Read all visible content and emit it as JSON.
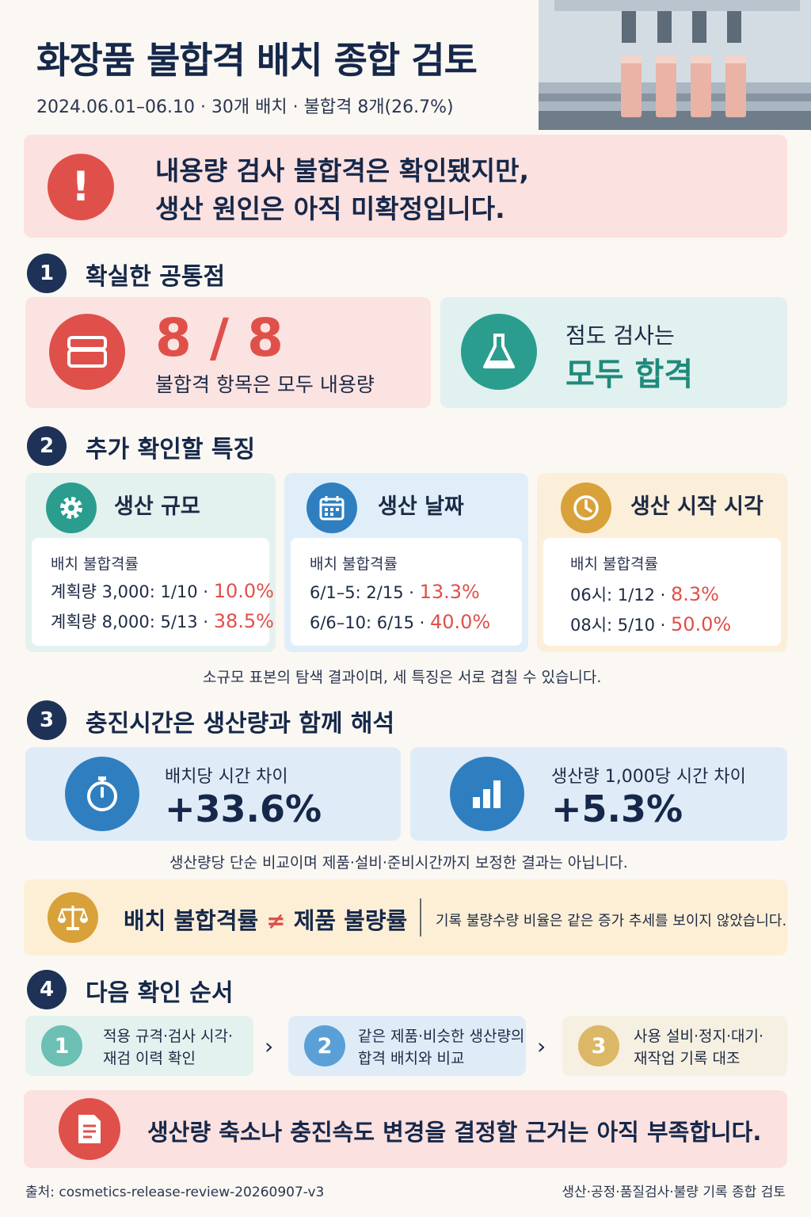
{
  "header": {
    "title": "화장품 불합격 배치 종합 검토",
    "subtitle": "2024.06.01–06.10 · 30개 배치 · 불합격 8개(26.7%)"
  },
  "alert": {
    "line1": "내용량 검사 불합격은 확인됐지만,",
    "line2": "생산 원인은 아직 미확정입니다."
  },
  "section1": {
    "num": "1",
    "title": "확실한 공통점",
    "card_a": {
      "value": "8 / 8",
      "label": "불합격 항목은 모두 내용량",
      "icon": "cosmetic-jar-icon"
    },
    "card_b": {
      "top": "점도 검사는",
      "big": "모두 합격",
      "icon": "flask-icon"
    }
  },
  "section2": {
    "num": "2",
    "title": "추가 확인할 특징",
    "cards": [
      {
        "title": "생산 규모",
        "icon": "gear-icon",
        "label": "배치 불합격률",
        "rows": [
          {
            "text": "계획량 3,000:  1/10 · ",
            "value": "10.0%"
          },
          {
            "text": "계획량 8,000:  5/13 · ",
            "value": "38.5%"
          }
        ]
      },
      {
        "title": "생산 날짜",
        "icon": "calendar-icon",
        "label": "배치 불합격률",
        "rows": [
          {
            "text": "6/1–5:  2/15 · ",
            "value": "13.3%"
          },
          {
            "text": "6/6–10:  6/15 · ",
            "value": "40.0%"
          }
        ]
      },
      {
        "title": "생산 시작 시각",
        "icon": "clock-icon",
        "label": "배치 불합격률",
        "rows": [
          {
            "text": "06시:  1/12 · ",
            "value": "8.3%"
          },
          {
            "text": "08시:  5/10 · ",
            "value": "50.0%"
          }
        ]
      }
    ],
    "note": "소규모 표본의 탐색 결과이며, 세 특징은 서로 겹칠 수 있습니다."
  },
  "section3": {
    "num": "3",
    "title": "충진시간은 생산량과 함께 해석",
    "card_a": {
      "label": "배치당 시간 차이",
      "value": "+33.6%",
      "icon": "stopwatch-icon"
    },
    "card_b": {
      "label": "생산량 1,000당 시간 차이",
      "value": "+5.3%",
      "icon": "bar-chart-icon"
    },
    "note": "생산량당 단순 비교이며 제품·설비·준비시간까지 보정한 결과는 아닙니다.",
    "balance": {
      "left": "배치 불합격률",
      "neq": "≠",
      "right": "제품 불량률",
      "note": "기록 불량수량 비율은 같은 증가 추세를 보이지 않았습니다.",
      "icon": "balance-scale-icon"
    }
  },
  "section4": {
    "num": "4",
    "title": "다음 확인 순서",
    "steps": [
      {
        "num": "1",
        "line1": "적용 규격·검사 시각·",
        "line2": "재검 이력 확인"
      },
      {
        "num": "2",
        "line1": "같은 제품·비슷한 생산량의",
        "line2": "합격 배치와 비교"
      },
      {
        "num": "3",
        "line1": "사용 설비·정지·대기·",
        "line2": "재작업 기록 대조"
      }
    ],
    "chevron": "›"
  },
  "conclusion": {
    "text": "생산량 축소나 충진속도 변경을 결정할 근거는 아직 부족합니다.",
    "icon": "document-icon"
  },
  "footer": {
    "source": "출처: cosmetics-release-review-20260907-v3",
    "scope": "생산·공정·품질검사·불량 기록 종합 검토"
  },
  "colors": {
    "navy": "#16284a",
    "red": "#e0504a",
    "teal": "#2a9d8f",
    "blue": "#2f7fc0",
    "gold": "#d9a13a"
  }
}
